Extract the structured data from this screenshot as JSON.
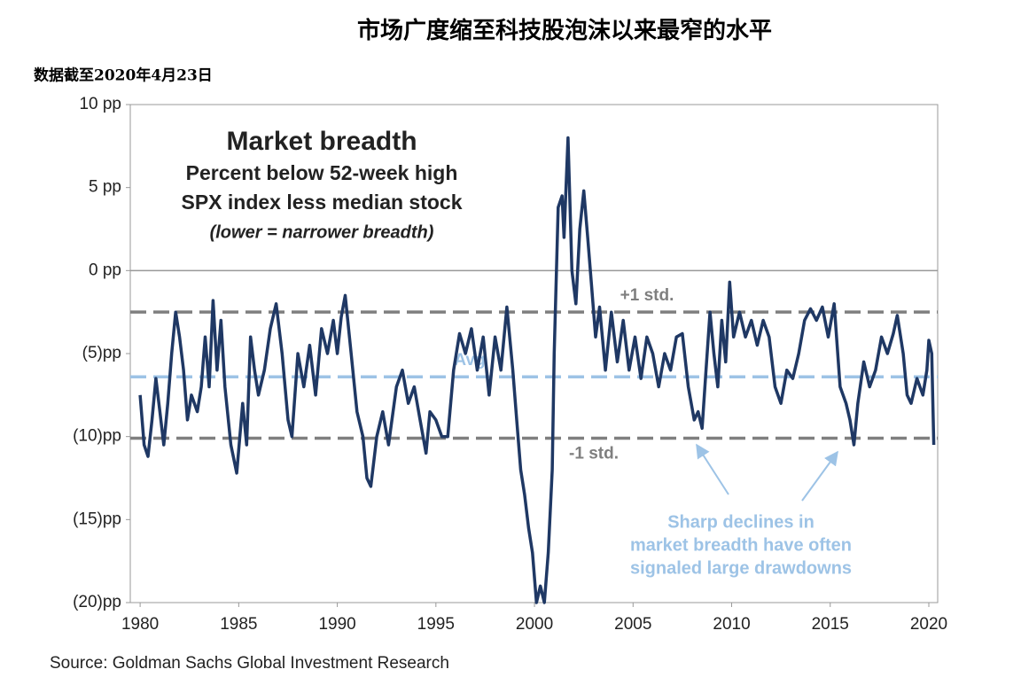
{
  "chart_data": {
    "type": "line",
    "title": "市场广度缩至科技股泡沫以来最窄的水平",
    "subtitle": "数据截至2020年4月23日",
    "source": "Source: Goldman Sachs Global Investment Research",
    "inset_title": [
      "Market breadth",
      "Percent below 52-week high",
      "SPX index less median stock",
      "(lower = narrower breadth)"
    ],
    "annotation": [
      "Sharp declines in",
      "market breadth have often",
      "signaled large drawdowns"
    ],
    "reference_lines": [
      {
        "value": -2.5,
        "label": "+1 std.",
        "color": "#7f7f7f"
      },
      {
        "value": -6.4,
        "label": "Avg",
        "color": "#9dc3e6"
      },
      {
        "value": -10.1,
        "label": "-1 std.",
        "color": "#7f7f7f"
      }
    ],
    "xlim": [
      1979.5,
      2020.45
    ],
    "xticks": [
      1980,
      1985,
      1990,
      1995,
      2000,
      2005,
      2010,
      2015,
      2020
    ],
    "ylim": [
      -20,
      10
    ],
    "yticks": [
      {
        "value": 10,
        "label": "10 pp"
      },
      {
        "value": 5,
        "label": "5 pp"
      },
      {
        "value": 0,
        "label": "0 pp"
      },
      {
        "value": -5,
        "label": "(5)pp"
      },
      {
        "value": -10,
        "label": "(10)pp"
      },
      {
        "value": -15,
        "label": "(15)pp"
      },
      {
        "value": -20,
        "label": "(20)pp"
      }
    ],
    "zero_line": true,
    "x": [
      1980.0,
      1980.2,
      1980.4,
      1980.6,
      1980.8,
      1981.0,
      1981.2,
      1981.4,
      1981.6,
      1981.8,
      1982.0,
      1982.2,
      1982.4,
      1982.6,
      1982.9,
      1983.1,
      1983.3,
      1983.5,
      1983.7,
      1983.9,
      1984.1,
      1984.3,
      1984.6,
      1984.9,
      1985.2,
      1985.4,
      1985.6,
      1985.8,
      1986.0,
      1986.3,
      1986.6,
      1986.9,
      1987.2,
      1987.5,
      1987.7,
      1988.0,
      1988.3,
      1988.6,
      1988.9,
      1989.2,
      1989.5,
      1989.8,
      1990.0,
      1990.2,
      1990.4,
      1990.7,
      1991.0,
      1991.3,
      1991.5,
      1991.7,
      1992.0,
      1992.3,
      1992.6,
      1993.0,
      1993.3,
      1993.6,
      1993.9,
      1994.2,
      1994.5,
      1994.7,
      1995.0,
      1995.3,
      1995.6,
      1995.9,
      1996.2,
      1996.5,
      1996.8,
      1997.1,
      1997.4,
      1997.7,
      1998.0,
      1998.3,
      1998.6,
      1998.9,
      1999.1,
      1999.3,
      1999.5,
      1999.7,
      1999.9,
      2000.1,
      2000.3,
      2000.5,
      2000.7,
      2000.9,
      2001.0,
      2001.2,
      2001.4,
      2001.5,
      2001.7,
      2001.9,
      2002.1,
      2002.3,
      2002.5,
      2002.7,
      2002.9,
      2003.1,
      2003.3,
      2003.6,
      2003.9,
      2004.2,
      2004.5,
      2004.8,
      2005.1,
      2005.4,
      2005.7,
      2006.0,
      2006.3,
      2006.6,
      2006.9,
      2007.2,
      2007.5,
      2007.8,
      2008.1,
      2008.3,
      2008.5,
      2008.7,
      2008.9,
      2009.1,
      2009.3,
      2009.5,
      2009.7,
      2009.9,
      2010.1,
      2010.4,
      2010.7,
      2011.0,
      2011.3,
      2011.6,
      2011.9,
      2012.2,
      2012.5,
      2012.8,
      2013.1,
      2013.4,
      2013.7,
      2014.0,
      2014.3,
      2014.6,
      2014.9,
      2015.2,
      2015.5,
      2015.8,
      2016.0,
      2016.2,
      2016.4,
      2016.7,
      2017.0,
      2017.3,
      2017.6,
      2017.9,
      2018.2,
      2018.4,
      2018.7,
      2018.9,
      2019.1,
      2019.4,
      2019.7,
      2019.9,
      2020.0,
      2020.15,
      2020.25
    ],
    "series": [
      {
        "name": "SPX less median stock",
        "color": "#1f3864",
        "values": [
          -7.5,
          -10.5,
          -11.2,
          -9,
          -6.5,
          -8.5,
          -10.5,
          -8,
          -5,
          -2.5,
          -4,
          -6,
          -9,
          -7.5,
          -8.5,
          -7,
          -4,
          -7,
          -1.8,
          -6,
          -3,
          -7,
          -10.5,
          -12.2,
          -8,
          -10.5,
          -4,
          -6,
          -7.5,
          -6,
          -3.5,
          -2,
          -5,
          -9,
          -10,
          -5,
          -7,
          -4.5,
          -7.5,
          -3.5,
          -5,
          -3,
          -5,
          -2.8,
          -1.5,
          -5,
          -8.5,
          -10,
          -12.5,
          -13,
          -10,
          -8.5,
          -10.5,
          -7,
          -6,
          -8,
          -7,
          -9,
          -11,
          -8.5,
          -9,
          -10,
          -10,
          -6,
          -3.8,
          -5,
          -3.5,
          -6,
          -4,
          -7.5,
          -4,
          -6,
          -2.2,
          -6,
          -9,
          -12,
          -13.5,
          -15.5,
          -17,
          -20,
          -19,
          -20,
          -17,
          -12,
          -5,
          3.8,
          4.5,
          2,
          8,
          0,
          -2,
          2.5,
          4.8,
          2,
          -1,
          -4,
          -2.2,
          -6,
          -2.5,
          -5.5,
          -3,
          -6,
          -4,
          -6.5,
          -4,
          -5,
          -7,
          -5,
          -6,
          -4,
          -3.8,
          -7,
          -9,
          -8.5,
          -9.5,
          -6,
          -2.5,
          -5,
          -7,
          -3,
          -5.5,
          -0.7,
          -4,
          -2.5,
          -4,
          -3,
          -4.5,
          -3,
          -4,
          -7,
          -8,
          -6,
          -6.5,
          -5,
          -3,
          -2.3,
          -3,
          -2.2,
          -4,
          -2,
          -7,
          -8,
          -9,
          -10.5,
          -8,
          -5.5,
          -7,
          -6,
          -4,
          -5,
          -3.8,
          -2.7,
          -5,
          -7.5,
          -8,
          -6.5,
          -7.5,
          -6,
          -4.2,
          -5,
          -10.5
        ]
      }
    ]
  }
}
